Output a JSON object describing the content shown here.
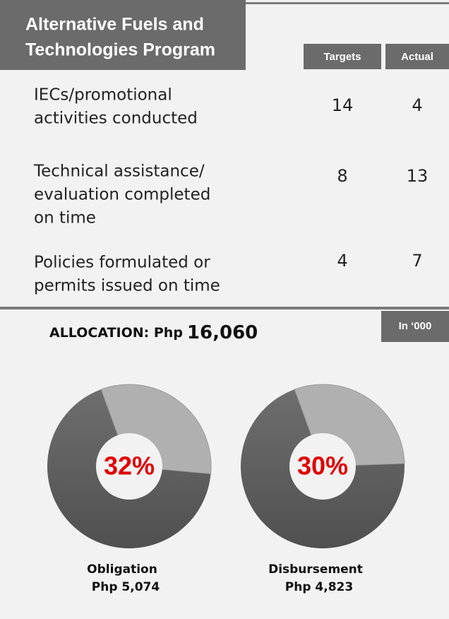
{
  "header": {
    "title": [
      "Alternative Fuels and",
      "Technologies Program"
    ]
  },
  "table": {
    "columns": [
      "Targets",
      "Actual"
    ],
    "rows": [
      {
        "label": [
          "IECs/promotional",
          "activities conducted"
        ],
        "values": [
          "14",
          "4"
        ]
      },
      {
        "label": [
          "Technical assistance/",
          "evaluation completed",
          "on time"
        ],
        "values": [
          "8",
          "13"
        ]
      },
      {
        "label": [
          "Policies formulated or",
          "permits issued on time"
        ],
        "values": [
          "4",
          "7"
        ]
      }
    ]
  },
  "allocation": {
    "label": "ALLOCATION: Php",
    "amount": "16,060",
    "unit_note": "In ‘000"
  },
  "donuts": [
    {
      "name": "Obligation",
      "amount": "Php 5,074",
      "value": 32,
      "value_label": "32%"
    },
    {
      "name": "Disbursement",
      "amount": "Php 4,823",
      "value": 30,
      "value_label": "30%"
    }
  ]
}
